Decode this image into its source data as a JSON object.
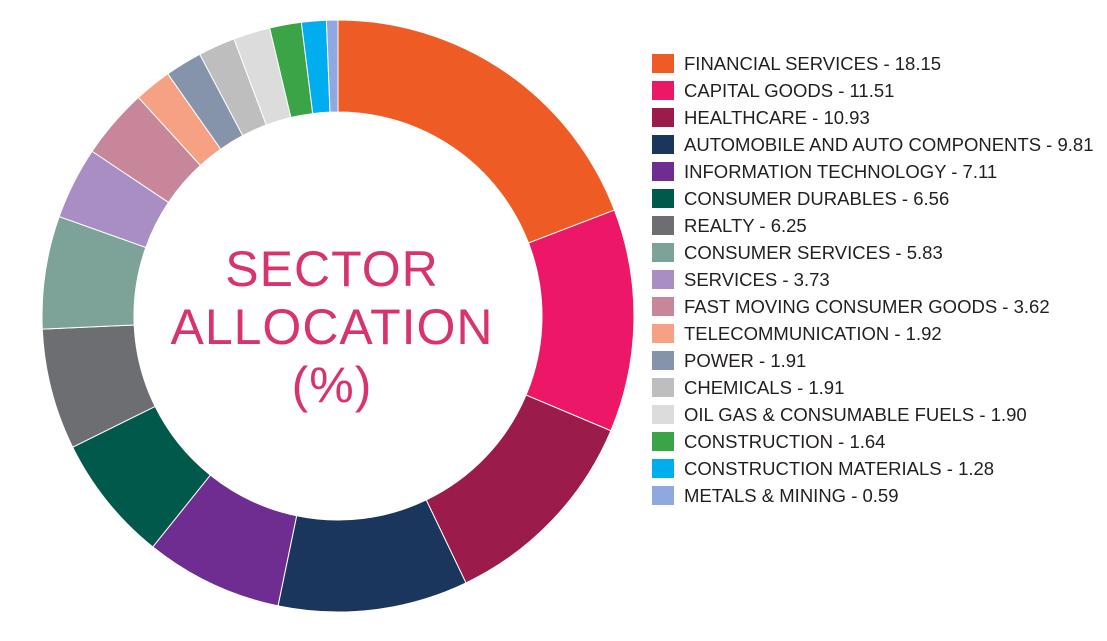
{
  "chart_data": {
    "type": "pie",
    "variant": "donut",
    "title": [
      "SECTOR",
      "ALLOCATION",
      "(%)"
    ],
    "legend_position": "right",
    "slices": [
      {
        "label": "FINANCIAL SERVICES - 18.15",
        "value": 18.15,
        "color": "#ef5b25"
      },
      {
        "label": "CAPITAL GOODS - 11.51",
        "value": 11.51,
        "color": "#ec1766"
      },
      {
        "label": "HEALTHCARE - 10.93",
        "value": 10.93,
        "color": "#9b1b4b"
      },
      {
        "label": "AUTOMOBILE AND AUTO COMPONENTS - 9.81",
        "value": 9.81,
        "color": "#1b365d"
      },
      {
        "label": "INFORMATION TECHNOLOGY - 7.11",
        "value": 7.11,
        "color": "#6f2c91"
      },
      {
        "label": "CONSUMER DURABLES - 6.56",
        "value": 6.56,
        "color": "#00594a"
      },
      {
        "label": "REALTY - 6.25",
        "value": 6.25,
        "color": "#6d6e71"
      },
      {
        "label": "CONSUMER SERVICES - 5.83",
        "value": 5.83,
        "color": "#7da399"
      },
      {
        "label": "SERVICES - 3.73",
        "value": 3.73,
        "color": "#a98ec4"
      },
      {
        "label": "FAST MOVING CONSUMER GOODS - 3.62",
        "value": 3.62,
        "color": "#c7869a"
      },
      {
        "label": "TELECOMMUNICATION - 1.92",
        "value": 1.92,
        "color": "#f7a184"
      },
      {
        "label": "POWER - 1.91",
        "value": 1.91,
        "color": "#8593ab"
      },
      {
        "label": "CHEMICALS - 1.91",
        "value": 1.91,
        "color": "#bebebe"
      },
      {
        "label": "OIL GAS & CONSUMABLE FUELS - 1.90",
        "value": 1.9,
        "color": "#dcdcdc"
      },
      {
        "label": "CONSTRUCTION - 1.64",
        "value": 1.64,
        "color": "#3aa447"
      },
      {
        "label": "CONSTRUCTION MATERIALS - 1.28",
        "value": 1.28,
        "color": "#00aeef"
      },
      {
        "label": "METALS & MINING - 0.59",
        "value": 0.59,
        "color": "#8fa9e0"
      }
    ]
  }
}
